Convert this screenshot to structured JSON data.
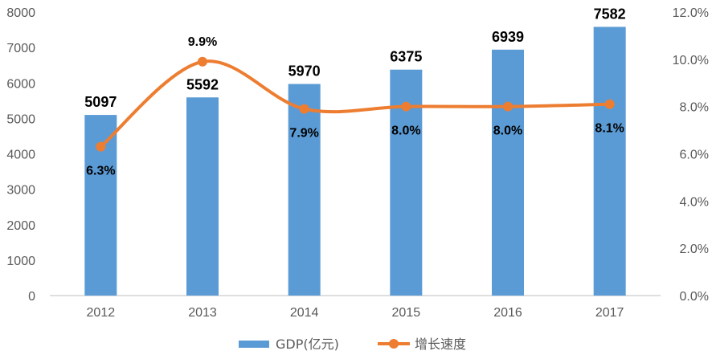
{
  "chart_data": {
    "type": "bar",
    "categories": [
      "2012",
      "2013",
      "2014",
      "2015",
      "2016",
      "2017"
    ],
    "series": [
      {
        "name": "GDP(亿元)",
        "type": "bar",
        "axis": "left",
        "values": [
          5097,
          5592,
          5970,
          6375,
          6939,
          7582
        ],
        "labels": [
          "5097",
          "5592",
          "5970",
          "6375",
          "6939",
          "7582"
        ],
        "color": "#5B9BD5"
      },
      {
        "name": "增长速度",
        "type": "line",
        "axis": "right",
        "values": [
          6.3,
          9.9,
          7.9,
          8.0,
          8.0,
          8.1
        ],
        "labels": [
          "6.3%",
          "9.9%",
          "7.9%",
          "8.0%",
          "8.0%",
          "8.1%"
        ],
        "color": "#ED7D31"
      }
    ],
    "y_left": {
      "min": 0,
      "max": 8000,
      "ticks": [
        "0",
        "1000",
        "2000",
        "3000",
        "4000",
        "5000",
        "6000",
        "7000",
        "8000"
      ]
    },
    "y_right": {
      "min": 0,
      "max": 12,
      "ticks": [
        "0.0%",
        "2.0%",
        "4.0%",
        "6.0%",
        "8.0%",
        "10.0%",
        "12.0%"
      ]
    },
    "grid": false,
    "legend": "bottom"
  }
}
